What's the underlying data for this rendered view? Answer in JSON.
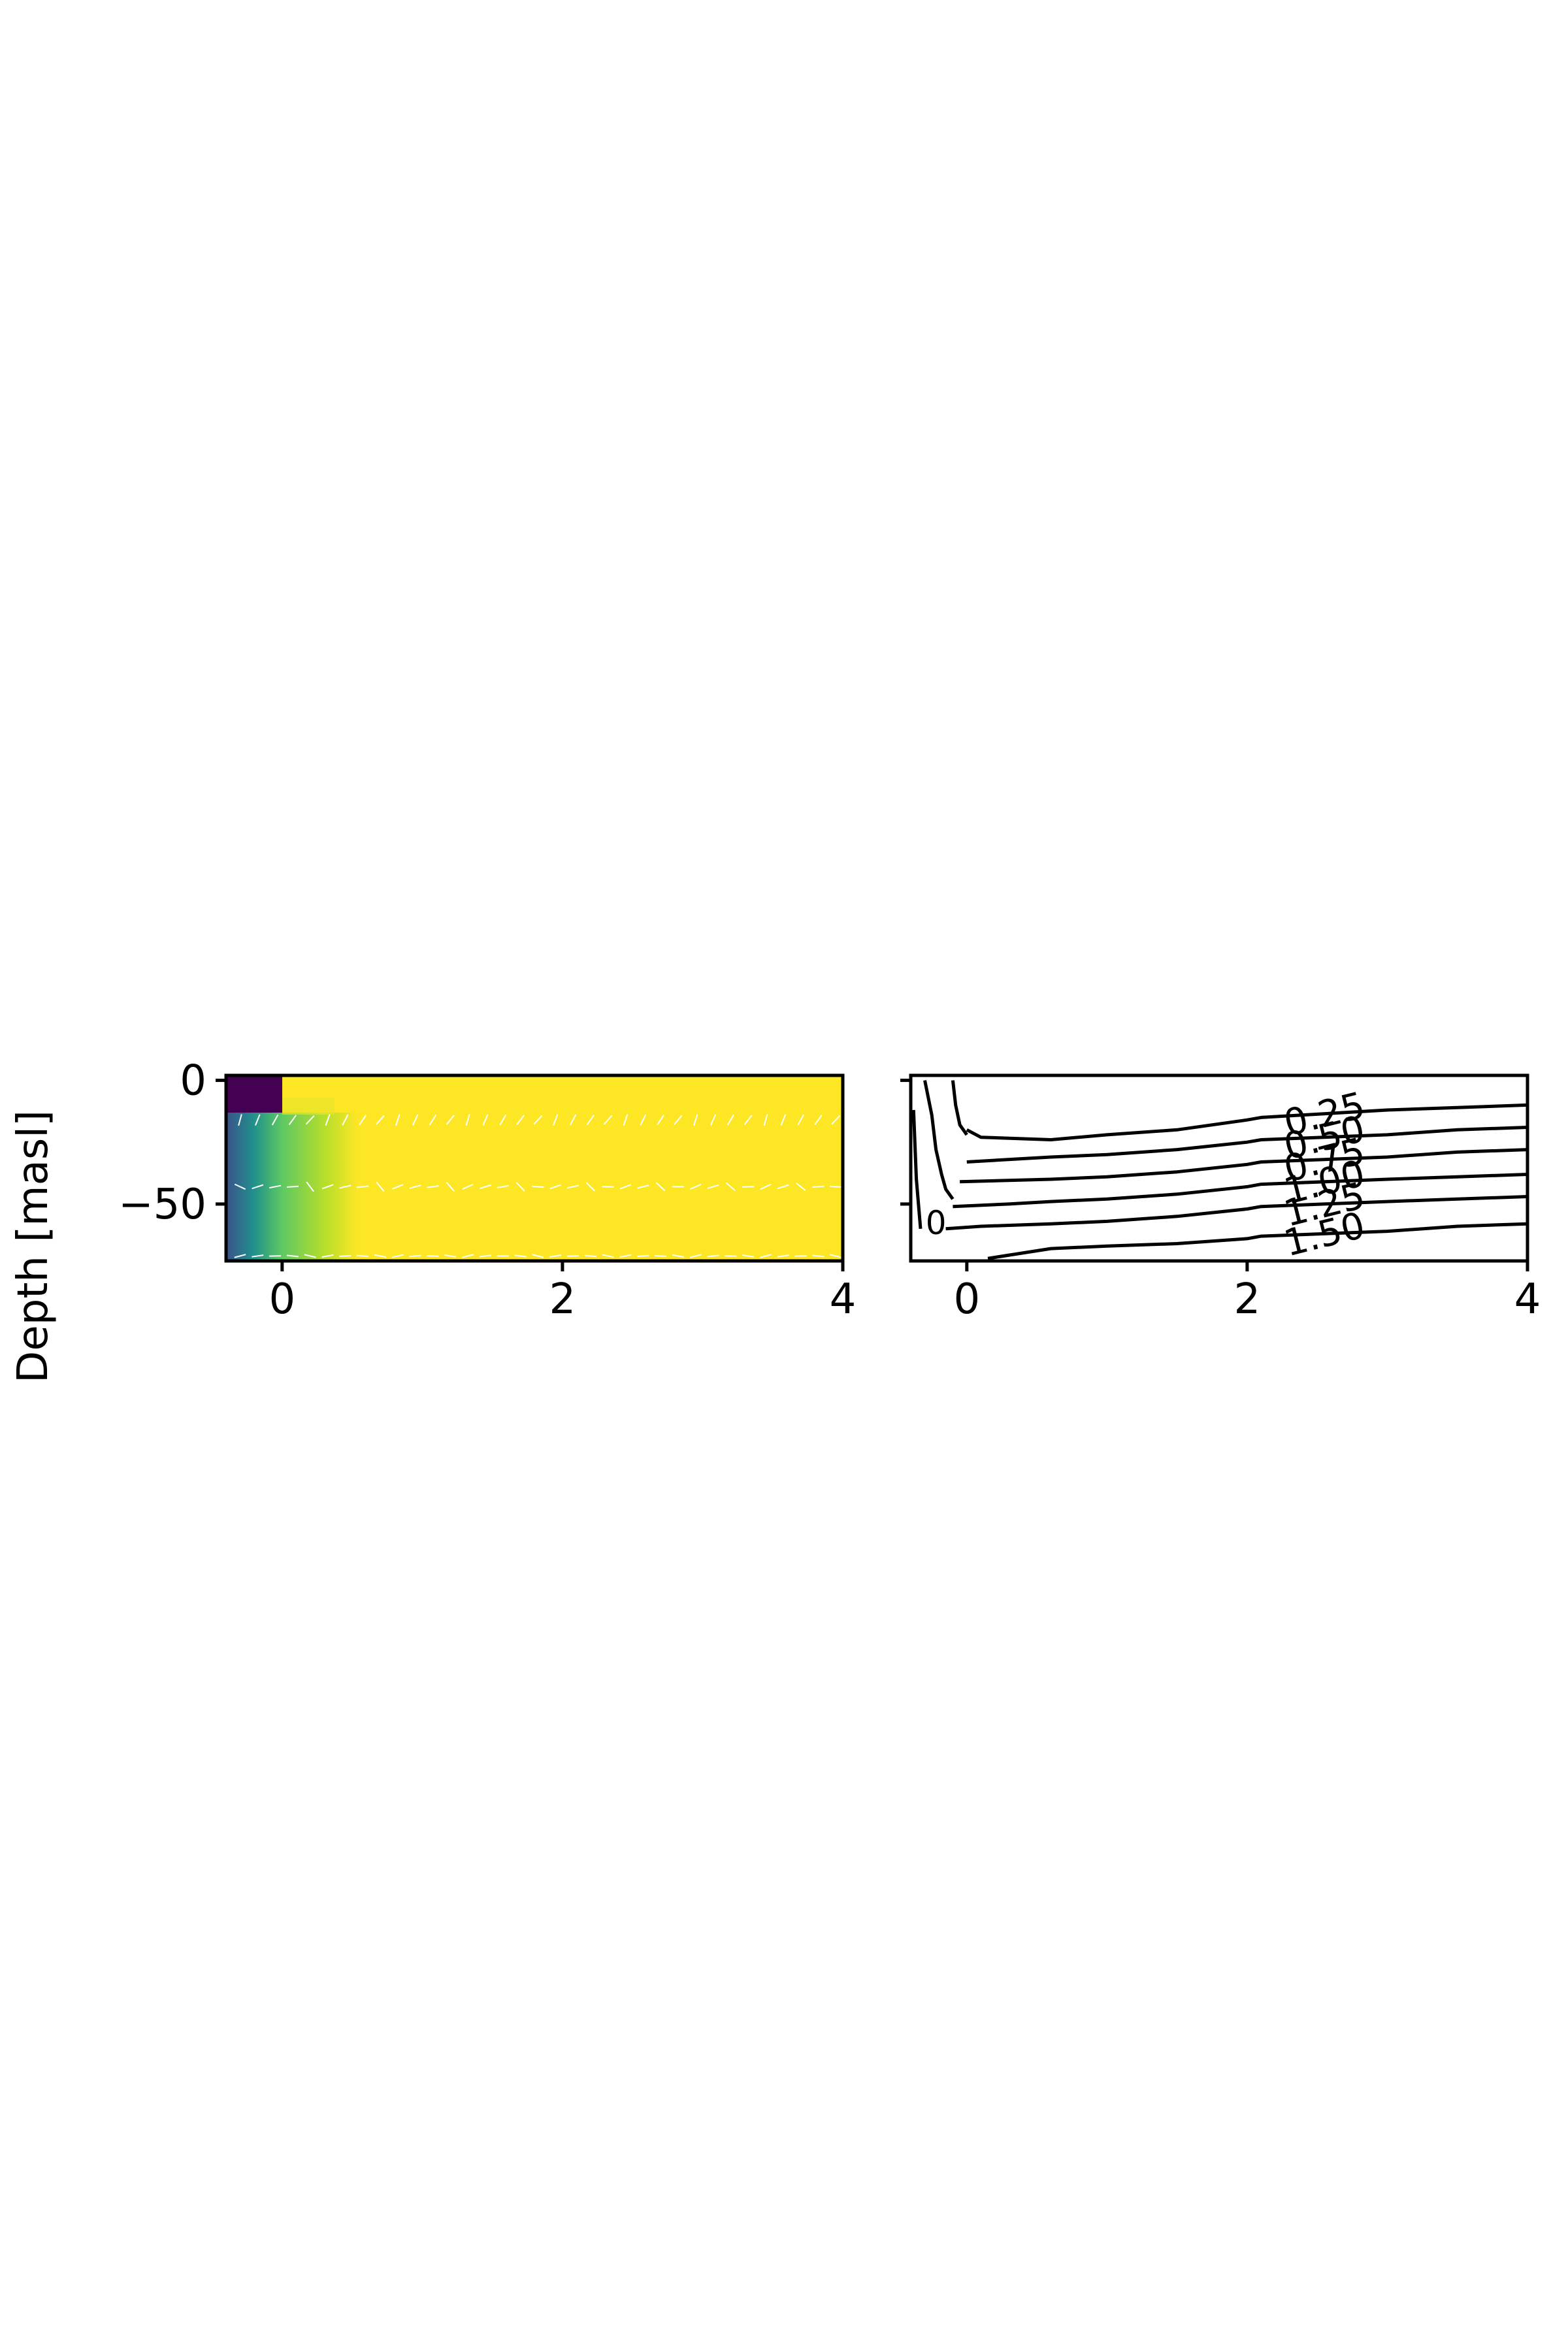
{
  "figure": {
    "ylabel": "Depth [masl]"
  },
  "chart_data": [
    {
      "type": "heatmap",
      "title": "",
      "xlabel": "",
      "ylabel": "Depth [masl]",
      "xlim": [
        -0.4,
        4
      ],
      "ylim": [
        -73,
        2
      ],
      "xticks": [
        0,
        2,
        4
      ],
      "yticks": [
        0,
        -50
      ],
      "xtick_labels": [
        "0",
        "2",
        "4"
      ],
      "ytick_labels": [
        "0",
        "−50"
      ],
      "colormap": "viridis",
      "colors": {
        "low": "#440154",
        "mid": "#21918c",
        "high": "#fde725"
      },
      "value_range": [
        0,
        1
      ],
      "field_description_regions": [
        {
          "x_range": [
            -0.4,
            0.0
          ],
          "depth_range": [
            0,
            -15
          ],
          "value": 0.0
        },
        {
          "x_range": [
            -0.4,
            0.0
          ],
          "depth_range": [
            -15,
            -73
          ],
          "value_gradient": [
            0.15,
            0.55
          ]
        },
        {
          "x_range": [
            0.0,
            0.55
          ],
          "depth_range": [
            -15,
            -73
          ],
          "value_gradient": [
            0.55,
            1.0
          ]
        },
        {
          "x_range": [
            0.0,
            4.0
          ],
          "depth_range": [
            0,
            -15
          ],
          "value": 1.0
        },
        {
          "x_range": [
            0.55,
            4.0
          ],
          "depth_range": [
            -15,
            -73
          ],
          "value": 1.0
        }
      ],
      "vector_rows_depth": [
        -16,
        -43,
        -71
      ]
    },
    {
      "type": "line",
      "title": "",
      "xlabel": "",
      "ylabel": "",
      "xlim": [
        -0.4,
        4
      ],
      "ylim": [
        -73,
        2
      ],
      "xticks": [
        0,
        2,
        4
      ],
      "yticks": [
        0,
        -50
      ],
      "xtick_labels": [
        "0",
        "2",
        "4"
      ],
      "ytick_labels": [
        "",
        ""
      ],
      "color": "#000000",
      "contour_labels": [
        "0.25",
        "0.50",
        "0.75",
        "1.00",
        "1.25",
        "1.50"
      ],
      "extra_label": "0",
      "series": [
        {
          "label": "0.25",
          "x": [
            0.0,
            0.1,
            0.6,
            1.0,
            1.5,
            2.0,
            2.1,
            3.0,
            3.5,
            4.0
          ],
          "y": [
            -20,
            -23,
            -24,
            -22,
            -20,
            -16,
            -15,
            -12,
            -11,
            -10
          ]
        },
        {
          "label": "0.50",
          "x": [
            0.0,
            0.6,
            1.0,
            1.5,
            2.0,
            2.1,
            3.0,
            3.5,
            4.0
          ],
          "y": [
            -33,
            -31,
            -30,
            -28,
            -25,
            -24,
            -22,
            -20,
            -19
          ]
        },
        {
          "label": "0.75",
          "x": [
            -0.05,
            0.6,
            1.0,
            1.5,
            2.0,
            2.1,
            3.0,
            3.5,
            4.0
          ],
          "y": [
            -41,
            -40,
            -39,
            -37,
            -34,
            -33,
            -31,
            -29,
            -28
          ]
        },
        {
          "label": "1.00",
          "x": [
            -0.1,
            0.3,
            0.6,
            1.0,
            1.5,
            2.0,
            2.1,
            3.0,
            3.5,
            4.0
          ],
          "y": [
            -51,
            -50,
            -49,
            -48,
            -46,
            -43,
            -42,
            -40,
            -39,
            -38
          ]
        },
        {
          "label": "1.25",
          "x": [
            -0.15,
            0.1,
            0.6,
            1.0,
            1.5,
            2.0,
            2.1,
            3.0,
            3.5,
            4.0
          ],
          "y": [
            -60,
            -59,
            -58,
            -57,
            -55,
            -52,
            -51,
            -49,
            -48,
            -47
          ]
        },
        {
          "label": "1.50",
          "x": [
            0.15,
            0.6,
            1.0,
            1.5,
            2.0,
            2.1,
            3.0,
            3.5,
            4.0
          ],
          "y": [
            -72,
            -68,
            -67,
            -66,
            -64,
            -63,
            -61,
            -59,
            -58
          ]
        }
      ],
      "left_steep_lines": [
        {
          "x": [
            -0.3,
            -0.25,
            -0.22,
            -0.18,
            -0.15,
            -0.1
          ],
          "y": [
            0,
            -14,
            -28,
            -38,
            -44,
            -48
          ]
        },
        {
          "x": [
            -0.1,
            -0.08,
            -0.05,
            0.0
          ],
          "y": [
            0,
            -10,
            -18,
            -22
          ]
        },
        {
          "x": [
            -0.38,
            -0.36,
            -0.33
          ],
          "y": [
            -12,
            -40,
            -60
          ]
        }
      ]
    }
  ]
}
